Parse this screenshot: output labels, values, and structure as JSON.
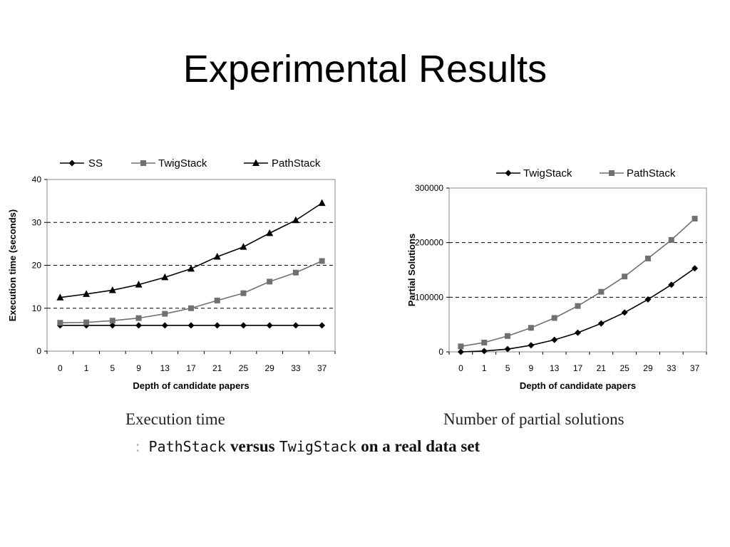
{
  "title": "Experimental Results",
  "chart_data": [
    {
      "type": "line",
      "categories": [
        "0",
        "1",
        "5",
        "9",
        "13",
        "17",
        "21",
        "25",
        "29",
        "33",
        "37"
      ],
      "series": [
        {
          "name": "SS",
          "marker": "diamond",
          "color": "#000000",
          "values": [
            6,
            6,
            6,
            6,
            6,
            6,
            6,
            6,
            6,
            6,
            6
          ]
        },
        {
          "name": "TwigStack",
          "marker": "square",
          "color": "#707070",
          "values": [
            6.6,
            6.7,
            7.1,
            7.7,
            8.7,
            10,
            11.8,
            13.5,
            16.2,
            18.3,
            21
          ]
        },
        {
          "name": "PathStack",
          "marker": "triangle",
          "color": "#000000",
          "values": [
            12.5,
            13.3,
            14.2,
            15.5,
            17.2,
            19.2,
            22,
            24.3,
            27.5,
            30.5,
            34.5
          ]
        }
      ],
      "xlabel": "Depth of candidate papers",
      "ylabel": "Execution time (seconds)",
      "ylim": [
        0,
        40
      ],
      "yticks": [
        "0",
        "10",
        "20",
        "30",
        "40"
      ],
      "grid": "dashed horizontal at 10, 20, 30",
      "legend": "top",
      "caption": "Execution time"
    },
    {
      "type": "line",
      "categories": [
        "0",
        "1",
        "5",
        "9",
        "13",
        "17",
        "21",
        "25",
        "29",
        "33",
        "37"
      ],
      "series": [
        {
          "name": "TwigStack",
          "marker": "diamond",
          "color": "#000000",
          "values": [
            0,
            1500,
            5000,
            12000,
            22000,
            35000,
            52000,
            72000,
            96000,
            123000,
            153000
          ]
        },
        {
          "name": "PathStack",
          "marker": "square",
          "color": "#707070",
          "values": [
            10000,
            17000,
            29000,
            44000,
            62000,
            84000,
            110000,
            138000,
            171000,
            205000,
            244000
          ]
        }
      ],
      "xlabel": "Depth of candidate papers",
      "ylabel": "Partial Solutions",
      "ylim": [
        0,
        300000
      ],
      "yticks": [
        "0",
        "100000",
        "200000",
        "300000"
      ],
      "grid": "dashed horizontal at 100000, 200000",
      "legend": "top",
      "caption": "Number of partial solutions"
    }
  ],
  "figure_caption": {
    "prefix": ":",
    "part1": "PathStack",
    "part2": "versus",
    "part3": "TwigStack",
    "part4": "on a real data set"
  }
}
